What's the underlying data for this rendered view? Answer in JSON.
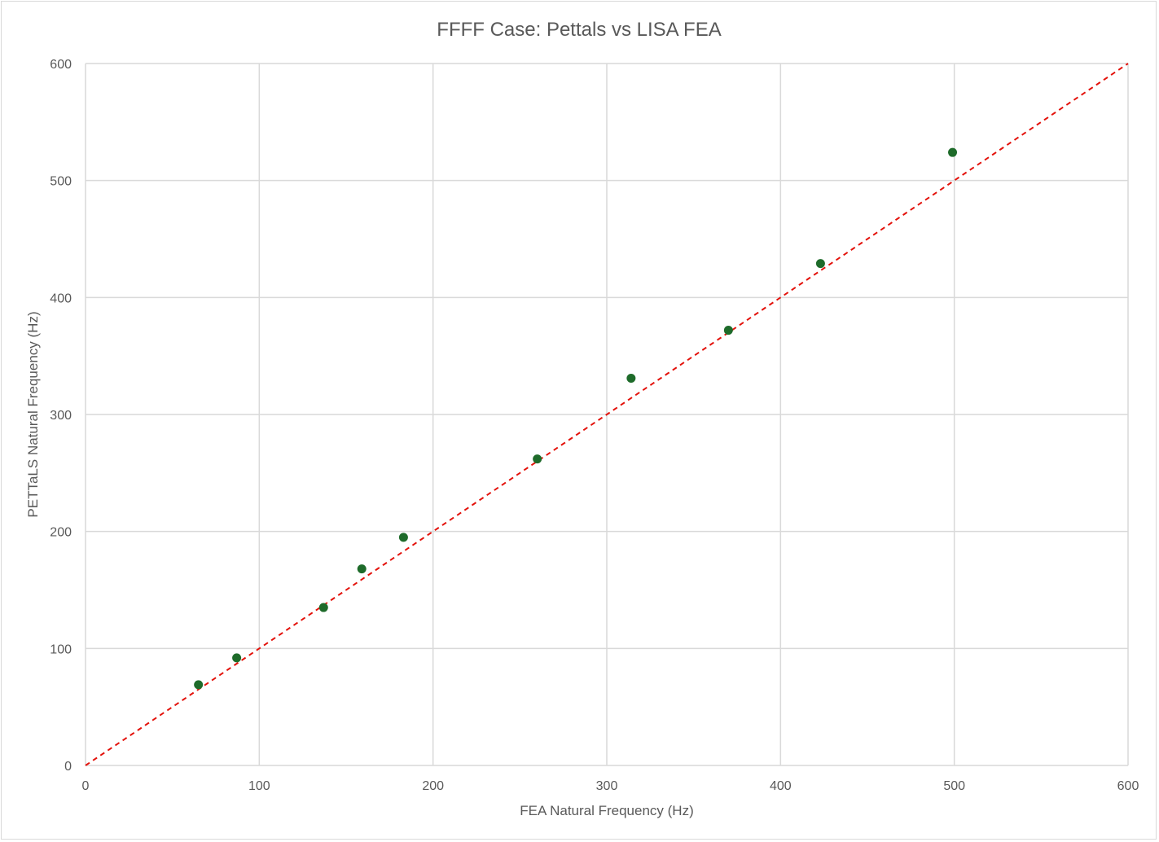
{
  "chart_data": {
    "type": "scatter",
    "title": "FFFF Case: Pettals vs LISA FEA",
    "xlabel": "FEA Natural Frequency (Hz)",
    "ylabel": "PETTaLS Natural Frequency (Hz)",
    "xlim": [
      0,
      600
    ],
    "ylim": [
      0,
      600
    ],
    "x_ticks": [
      0,
      100,
      200,
      300,
      400,
      500,
      600
    ],
    "y_ticks": [
      0,
      100,
      200,
      300,
      400,
      500,
      600
    ],
    "grid": true,
    "legend": "none",
    "series": [
      {
        "color": "#1e6b2a",
        "marker": "circle",
        "x": [
          65,
          87,
          137,
          159,
          183,
          260,
          314,
          370,
          423,
          499
        ],
        "y": [
          69,
          92,
          135,
          168,
          195,
          262,
          331,
          372,
          429,
          524
        ]
      }
    ],
    "reference_line": {
      "x": [
        0,
        600
      ],
      "y": [
        0,
        600
      ],
      "color": "#e3120b",
      "style": "dashed"
    },
    "colors": {
      "grid": "#d9d9d9",
      "text": "#595959"
    }
  }
}
